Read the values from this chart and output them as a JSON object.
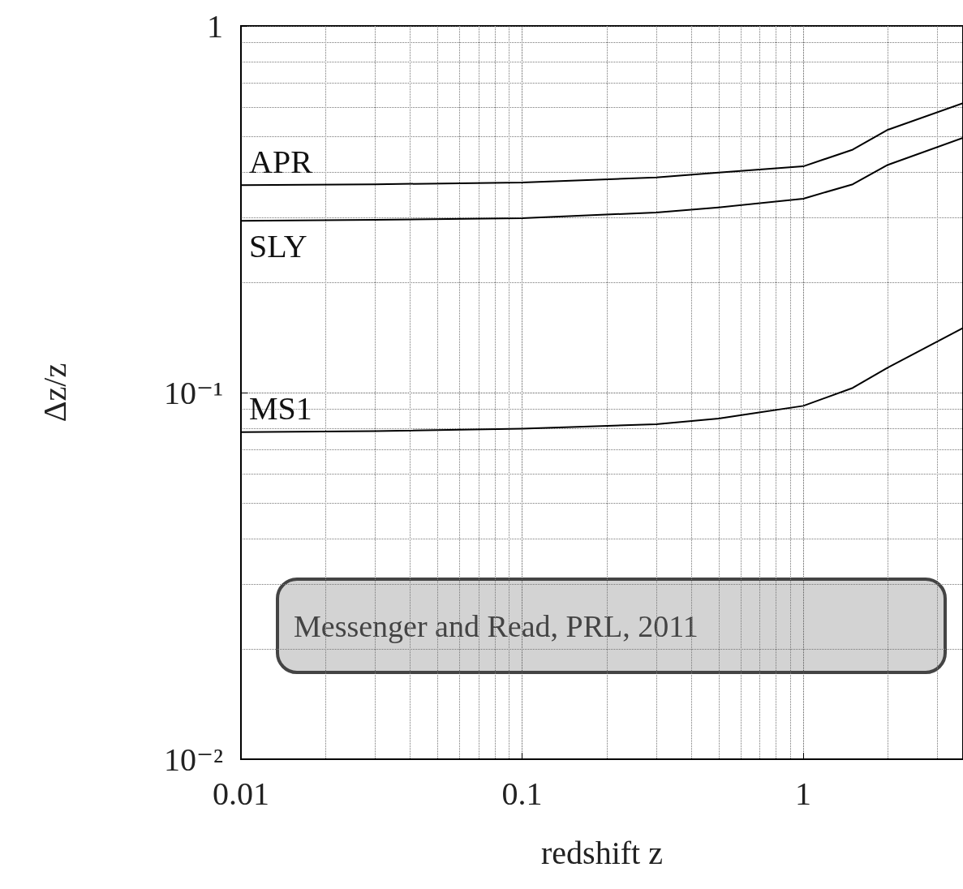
{
  "chart_data": {
    "type": "line",
    "xlabel": "redshift z",
    "ylabel": "Δz/z",
    "log": "xy",
    "grid": true,
    "line_style": "solid",
    "marker": "none",
    "legend": false,
    "xlim": [
      0.01,
      3.7
    ],
    "xticks": [
      0.01,
      0.1,
      1
    ],
    "ylim": [
      0.01,
      1
    ],
    "yticks": [
      {
        "value": 0.01,
        "label": "10⁻²"
      },
      {
        "value": 0.1,
        "label": "10⁻¹"
      },
      1
    ],
    "x": [
      0.01,
      0.03,
      0.1,
      0.3,
      0.5,
      1,
      1.5,
      2,
      3.7
    ],
    "series": [
      {
        "name": "APR",
        "color": "#000000",
        "values": [
          0.368,
          0.37,
          0.374,
          0.386,
          0.398,
          0.414,
          0.46,
          0.521,
          0.616
        ]
      },
      {
        "name": "SLY",
        "color": "#000000",
        "values": [
          0.294,
          0.296,
          0.299,
          0.31,
          0.32,
          0.338,
          0.37,
          0.418,
          0.495
        ]
      },
      {
        "name": "MS1",
        "color": "#000000",
        "values": [
          0.078,
          0.0785,
          0.0797,
          0.082,
          0.085,
          0.092,
          0.103,
          0.117,
          0.15
        ]
      }
    ],
    "annotations": [
      "Messenger and Read, PRL, 2011"
    ]
  }
}
